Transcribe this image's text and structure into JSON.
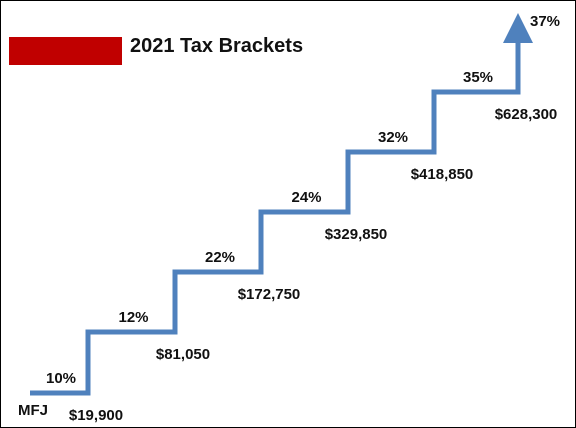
{
  "title": "2021 Tax Brackets",
  "filing_status": "MFJ",
  "colors": {
    "accent": "#c00000",
    "stairs": "#4f81bd"
  },
  "chart_data": {
    "type": "step",
    "brackets": [
      {
        "rate": "10%",
        "threshold": "$19,900"
      },
      {
        "rate": "12%",
        "threshold": "$81,050"
      },
      {
        "rate": "22%",
        "threshold": "$172,750"
      },
      {
        "rate": "24%",
        "threshold": "$329,850"
      },
      {
        "rate": "32%",
        "threshold": "$418,850"
      },
      {
        "rate": "35%",
        "threshold": "$628,300"
      },
      {
        "rate": "37%",
        "threshold": ""
      }
    ]
  }
}
